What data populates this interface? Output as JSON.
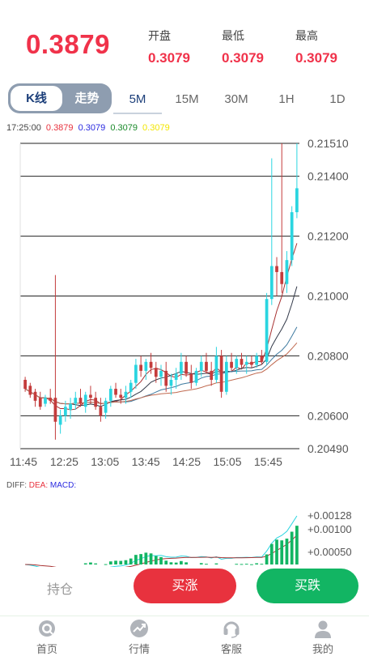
{
  "header": {
    "current_price": "0.3879",
    "stats": [
      {
        "label": "开盘",
        "value": "0.3079"
      },
      {
        "label": "最低",
        "value": "0.3079"
      },
      {
        "label": "最高",
        "value": "0.3079"
      }
    ]
  },
  "chart_toggle": {
    "active": "K线",
    "inactive": "走势"
  },
  "timeframes": [
    "5M",
    "15M",
    "30M",
    "1H",
    "1D"
  ],
  "active_timeframe": "5M",
  "ma_legend": {
    "time": "17:25:00",
    "values": [
      {
        "text": "0.3879",
        "color": "#e8323e"
      },
      {
        "text": "0.3079",
        "color": "#2a2ae0"
      },
      {
        "text": "0.3079",
        "color": "#1a8a2a"
      },
      {
        "text": "0.3079",
        "color": "#f2e600"
      }
    ]
  },
  "chart_data": {
    "type": "candlestick",
    "y_ticks": [
      "0.21510",
      "0.21400",
      "0.21200",
      "0.21000",
      "0.20800",
      "0.20600",
      "0.20490"
    ],
    "ylim": [
      0.2049,
      0.2151
    ],
    "x_ticks": [
      "11:45",
      "12:25",
      "13:05",
      "13:45",
      "14:25",
      "15:05",
      "15:45"
    ],
    "up_color": "#2ad5e0",
    "down_color": "#c43c3c",
    "candles": [
      [
        0.2072,
        0.2073,
        0.2068,
        0.2069
      ],
      [
        0.207,
        0.2071,
        0.2066,
        0.2067
      ],
      [
        0.2068,
        0.2069,
        0.2063,
        0.2065
      ],
      [
        0.2066,
        0.2068,
        0.2062,
        0.2063
      ],
      [
        0.2064,
        0.2067,
        0.2063,
        0.2066
      ],
      [
        0.2066,
        0.2069,
        0.2064,
        0.2065
      ],
      [
        0.2066,
        0.2107,
        0.2052,
        0.2058
      ],
      [
        0.2057,
        0.2062,
        0.2054,
        0.206
      ],
      [
        0.206,
        0.2065,
        0.2058,
        0.2063
      ],
      [
        0.2062,
        0.2066,
        0.2059,
        0.2064
      ],
      [
        0.2064,
        0.2068,
        0.2062,
        0.2066
      ],
      [
        0.2066,
        0.2069,
        0.2063,
        0.2064
      ],
      [
        0.2063,
        0.2068,
        0.2061,
        0.2067
      ],
      [
        0.2067,
        0.207,
        0.2064,
        0.2066
      ],
      [
        0.2066,
        0.2068,
        0.2062,
        0.2063
      ],
      [
        0.2063,
        0.2066,
        0.2058,
        0.206
      ],
      [
        0.2061,
        0.2066,
        0.2059,
        0.2065
      ],
      [
        0.2065,
        0.207,
        0.2063,
        0.2069
      ],
      [
        0.2069,
        0.2071,
        0.2066,
        0.2067
      ],
      [
        0.2067,
        0.2069,
        0.2064,
        0.2066
      ],
      [
        0.2066,
        0.207,
        0.2064,
        0.2068
      ],
      [
        0.2068,
        0.2072,
        0.2066,
        0.2071
      ],
      [
        0.2071,
        0.2079,
        0.2069,
        0.2077
      ],
      [
        0.2077,
        0.208,
        0.2073,
        0.2075
      ],
      [
        0.2075,
        0.2079,
        0.2072,
        0.2078
      ],
      [
        0.2078,
        0.2081,
        0.2074,
        0.2076
      ],
      [
        0.2076,
        0.2078,
        0.2071,
        0.2073
      ],
      [
        0.2073,
        0.2077,
        0.207,
        0.2075
      ],
      [
        0.2075,
        0.2078,
        0.2068,
        0.207
      ],
      [
        0.207,
        0.2074,
        0.2067,
        0.2072
      ],
      [
        0.2072,
        0.2076,
        0.2069,
        0.2074
      ],
      [
        0.2074,
        0.2081,
        0.2072,
        0.2078
      ],
      [
        0.2078,
        0.208,
        0.2073,
        0.2074
      ],
      [
        0.2074,
        0.2077,
        0.2069,
        0.2071
      ],
      [
        0.2071,
        0.2076,
        0.207,
        0.2075
      ],
      [
        0.2075,
        0.208,
        0.2073,
        0.2078
      ],
      [
        0.2078,
        0.2081,
        0.2074,
        0.2075
      ],
      [
        0.2075,
        0.2078,
        0.207,
        0.2072
      ],
      [
        0.2072,
        0.2083,
        0.2071,
        0.208
      ],
      [
        0.208,
        0.2082,
        0.2066,
        0.2068
      ],
      [
        0.2068,
        0.208,
        0.2067,
        0.2078
      ],
      [
        0.2078,
        0.2081,
        0.2075,
        0.2076
      ],
      [
        0.2076,
        0.208,
        0.2074,
        0.2079
      ],
      [
        0.2079,
        0.2081,
        0.2076,
        0.2077
      ],
      [
        0.2077,
        0.208,
        0.2074,
        0.2078
      ],
      [
        0.2078,
        0.208,
        0.2076,
        0.2077
      ],
      [
        0.2077,
        0.2081,
        0.2076,
        0.208
      ],
      [
        0.208,
        0.2082,
        0.2077,
        0.2078
      ],
      [
        0.2078,
        0.2101,
        0.2077,
        0.2099
      ],
      [
        0.2099,
        0.2146,
        0.2097,
        0.211
      ],
      [
        0.211,
        0.2113,
        0.21,
        0.2108
      ],
      [
        0.2108,
        0.2151,
        0.2101,
        0.2104
      ],
      [
        0.2104,
        0.2115,
        0.2101,
        0.2112
      ],
      [
        0.2112,
        0.213,
        0.211,
        0.2128
      ],
      [
        0.2128,
        0.2151,
        0.2126,
        0.2136
      ]
    ]
  },
  "macd": {
    "labels": [
      {
        "text": "DIFF:",
        "color": "#555555"
      },
      {
        "text": "DEA:",
        "color": "#e8323e"
      },
      {
        "text": "MACD:",
        "color": "#2a2ae0"
      }
    ],
    "ticks": [
      "+0.00128",
      "+0.00100",
      "+0.00050"
    ]
  },
  "actions": {
    "hold": "持仓",
    "buy_up": "买涨",
    "buy_down": "买跌"
  },
  "tabs": [
    {
      "label": "首页",
      "icon": "home-icon"
    },
    {
      "label": "行情",
      "icon": "market-icon"
    },
    {
      "label": "客服",
      "icon": "customer-service-icon"
    },
    {
      "label": "我的",
      "icon": "profile-icon"
    }
  ]
}
